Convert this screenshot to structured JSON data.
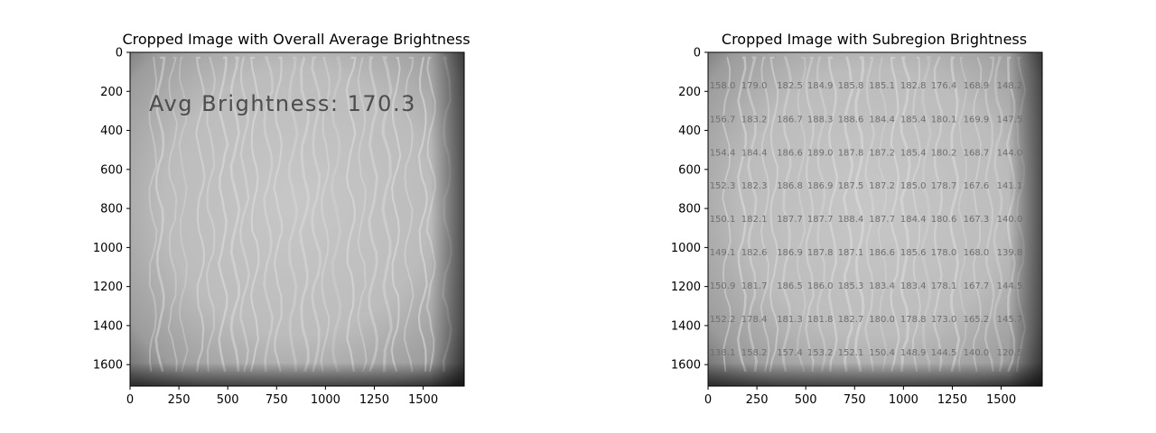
{
  "chart_data": [
    {
      "type": "image",
      "title": "Cropped Image with Overall Average Brightness",
      "xlim": [
        0,
        1710
      ],
      "ylim": [
        1710,
        0
      ],
      "xticks": [
        0,
        250,
        500,
        750,
        1000,
        1250,
        1500
      ],
      "yticks": [
        0,
        200,
        400,
        600,
        800,
        1000,
        1200,
        1400,
        1600
      ],
      "annotations": [
        {
          "text": "Avg Brightness: 170.3",
          "x": 100,
          "y": 300
        }
      ]
    },
    {
      "type": "heatmap",
      "title": "Cropped Image with Subregion Brightness",
      "xlim": [
        0,
        1710
      ],
      "ylim": [
        1710,
        0
      ],
      "xticks": [
        0,
        250,
        500,
        750,
        1000,
        1250,
        1500
      ],
      "yticks": [
        0,
        200,
        400,
        600,
        800,
        1000,
        1200,
        1400,
        1600
      ],
      "label_x": [
        8,
        170,
        352,
        508,
        664,
        824,
        984,
        1140,
        1306,
        1477
      ],
      "label_y": [
        168,
        341,
        512,
        682,
        853,
        1024,
        1195,
        1365,
        1536
      ],
      "values": [
        [
          "158.0",
          "179.0",
          "182.5",
          "184.9",
          "185.8",
          "185.1",
          "182.8",
          "176.4",
          "168.9",
          "148.2"
        ],
        [
          "156.7",
          "183.2",
          "186.7",
          "188.3",
          "188.6",
          "184.4",
          "185.4",
          "180.1",
          "169.9",
          "147.5"
        ],
        [
          "154.4",
          "184.4",
          "186.6",
          "189.0",
          "187.8",
          "187.2",
          "185.4",
          "180.2",
          "168.7",
          "144.0"
        ],
        [
          "152.3",
          "182.3",
          "186.8",
          "186.9",
          "187.5",
          "187.2",
          "185.0",
          "178.7",
          "167.6",
          "141.1"
        ],
        [
          "150.1",
          "182.1",
          "187.7",
          "187.7",
          "188.4",
          "187.7",
          "184.4",
          "180.6",
          "167.3",
          "140.0"
        ],
        [
          "149.1",
          "182.6",
          "186.9",
          "187.8",
          "187.1",
          "186.6",
          "185.6",
          "178.0",
          "168.0",
          "139.8"
        ],
        [
          "150.9",
          "181.7",
          "186.5",
          "186.0",
          "185.3",
          "183.4",
          "183.4",
          "178.1",
          "167.7",
          "144.5"
        ],
        [
          "152.2",
          "178.4",
          "181.3",
          "181.8",
          "182.7",
          "180.0",
          "178.8",
          "173.0",
          "165.2",
          "145.7"
        ],
        [
          "138.1",
          "158.2",
          "157.4",
          "153.2",
          "152.1",
          "150.4",
          "148.9",
          "144.5",
          "140.0",
          "120.5"
        ]
      ]
    }
  ]
}
